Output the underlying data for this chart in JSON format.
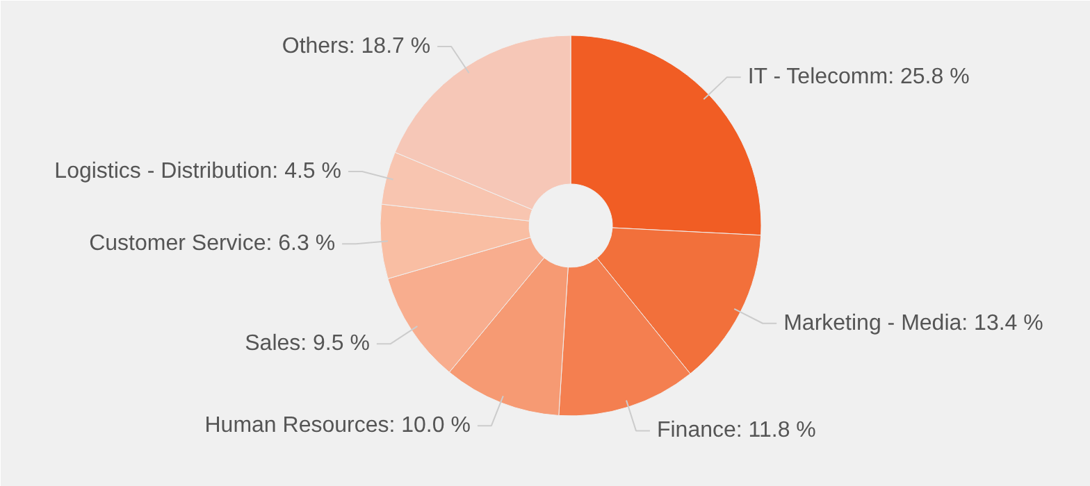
{
  "chart_data": {
    "type": "donut",
    "categories": [
      "IT - Telecomm",
      "Marketing - Media",
      "Finance",
      "Human Resources",
      "Sales",
      "Customer Service",
      "Logistics - Distribution",
      "Others"
    ],
    "values": [
      25.8,
      13.4,
      11.8,
      10.0,
      9.5,
      6.3,
      4.5,
      18.7
    ],
    "value_labels": [
      "25.8 %",
      "13.4 %",
      "11.8 %",
      "10.0 %",
      "9.5 %",
      "6.3 %",
      "4.5 %",
      "18.7 %"
    ],
    "colors": [
      "#f15d24",
      "#f2703b",
      "#f47f50",
      "#f69a73",
      "#f8ad8e",
      "#f9bea3",
      "#f8c5b0",
      "#f6c7b7"
    ]
  }
}
